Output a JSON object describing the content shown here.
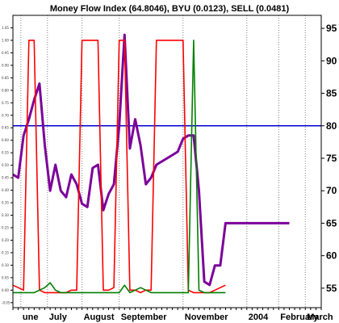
{
  "chart_data": {
    "type": "line",
    "title": "Money Flow Index (64.8046), BYU (0.0123), SELL (0.0481)",
    "xlabel": "",
    "ylabel": "",
    "grid": "vertical-dotted",
    "x_tick_labels": [
      "une",
      "July",
      "August",
      "September",
      "November",
      "2004",
      "February",
      "March"
    ],
    "x_tick_positions": [
      1.5,
      6.5,
      13,
      20,
      32,
      44,
      50,
      55
    ],
    "xlim": [
      0,
      58
    ],
    "y_right": {
      "ylim": [
        52,
        97
      ],
      "ticks": [
        55,
        60,
        65,
        70,
        75,
        80,
        85,
        90,
        95
      ]
    },
    "y_left": {
      "ylim": [
        -0.07,
        1.1
      ],
      "ticks": [
        -0.05,
        0.0,
        0.05,
        0.1,
        0.15,
        0.2,
        0.25,
        0.3,
        0.35,
        0.4,
        0.45,
        0.5,
        0.55,
        0.6,
        0.65,
        0.7,
        0.75,
        0.8,
        0.85,
        0.9,
        0.95,
        1.0,
        1.05
      ],
      "tick_labels": [
        "-0.05",
        "0.00",
        "0.05",
        "0.10",
        "0.15",
        "0.20",
        "0.25",
        "0.30",
        "0.35",
        "0.40",
        "0.45",
        "0.50",
        "0.55",
        "0.60",
        "0.65",
        "0.70",
        "0.75",
        "0.80",
        "0.85",
        "0.90",
        "0.95",
        "1.00",
        "1.05"
      ]
    },
    "reference_line": {
      "axis": "right",
      "value": 80,
      "color": "#0000cc"
    },
    "series": [
      {
        "key": "mfi",
        "axis": "right",
        "color": "#7b0099",
        "x": [
          0,
          1,
          2,
          3,
          4,
          5,
          6,
          7,
          8,
          9,
          10,
          11,
          12,
          13,
          14,
          15,
          16,
          17,
          18,
          19,
          20,
          21,
          22,
          23,
          24,
          25,
          26,
          27,
          28,
          29,
          30,
          31,
          32,
          33,
          34,
          35,
          36,
          37,
          38,
          39,
          40,
          41,
          42,
          43,
          44,
          45,
          46,
          47,
          48,
          49,
          50,
          51,
          52
        ],
        "values": [
          72.5,
          72.0,
          78.5,
          81.0,
          84.0,
          86.5,
          77.0,
          70.0,
          74.0,
          70.0,
          69.0,
          72.5,
          71.0,
          68.0,
          67.5,
          73.5,
          74.0,
          67.0,
          69.5,
          71.0,
          80.0,
          94.0,
          76.5,
          81.0,
          77.0,
          71.0,
          72.0,
          74.0,
          74.5,
          75.0,
          75.5,
          76.0,
          78.0,
          78.5,
          78.5,
          70.0,
          56.0,
          55.5,
          58.5,
          58.5,
          65.0,
          65.0,
          65.0,
          65.0,
          65.0,
          65.0,
          65.0,
          65.0,
          65.0,
          65.0,
          65.0,
          65.0,
          65.0
        ]
      },
      {
        "key": "sell",
        "axis": "left",
        "color": "#ff0000",
        "x": [
          0,
          2,
          3,
          4,
          5,
          6,
          7,
          10,
          11,
          12,
          13,
          14,
          15,
          16,
          17,
          18,
          19,
          20,
          21,
          22,
          23,
          24,
          25,
          26,
          27,
          28,
          29,
          30,
          31,
          32,
          33,
          34,
          35,
          36,
          37,
          38,
          39,
          40
        ],
        "values": [
          0.02,
          0.0,
          1.0,
          1.0,
          0.0,
          -0.01,
          -0.01,
          -0.01,
          0.0,
          0.0,
          1.0,
          1.0,
          1.0,
          1.0,
          0.0,
          0.0,
          0.01,
          1.0,
          1.0,
          0.0,
          0.0,
          -0.01,
          0.0,
          0.0,
          1.0,
          1.0,
          1.0,
          1.0,
          1.0,
          1.0,
          0.0,
          -0.01,
          -0.01,
          -0.01,
          -0.01,
          0.0,
          0.01,
          0.02
        ]
      },
      {
        "key": "buy",
        "axis": "left",
        "color": "#008000",
        "x": [
          0,
          2,
          4,
          5,
          6,
          7,
          8,
          9,
          10,
          11,
          12,
          13,
          14,
          15,
          16,
          17,
          18,
          19,
          20,
          21,
          22,
          23,
          24,
          25,
          26,
          27,
          28,
          29,
          30,
          31,
          32,
          33,
          34,
          35,
          36,
          37,
          38,
          39,
          40
        ],
        "values": [
          -0.01,
          -0.01,
          -0.01,
          0.0,
          0.01,
          0.03,
          0.0,
          -0.01,
          -0.01,
          -0.01,
          -0.01,
          -0.01,
          -0.01,
          -0.01,
          -0.01,
          -0.01,
          -0.01,
          -0.01,
          -0.01,
          0.02,
          -0.01,
          0.0,
          0.01,
          0.0,
          -0.01,
          -0.01,
          -0.01,
          -0.01,
          -0.01,
          -0.01,
          -0.01,
          -0.01,
          1.0,
          0.0,
          -0.01,
          -0.01,
          -0.01,
          -0.01,
          -0.01
        ]
      }
    ]
  }
}
